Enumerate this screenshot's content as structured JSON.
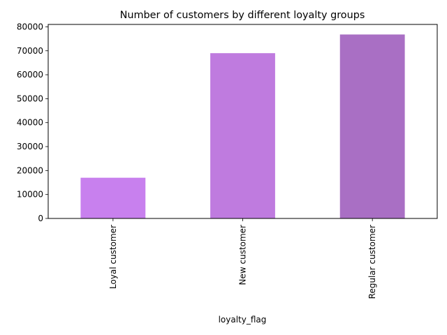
{
  "chart_data": {
    "type": "bar",
    "title": "Number of customers by different loyalty groups",
    "xlabel": "loyalty_flag",
    "ylabel": "",
    "categories": [
      "Loyal customer",
      "New customer",
      "Regular customer"
    ],
    "values": [
      17000,
      69000,
      76800
    ],
    "colors": [
      "#c880ee",
      "#bf7bdf",
      "#a96fc4"
    ],
    "ylim": [
      0,
      81000
    ],
    "yticks": [
      0,
      10000,
      20000,
      30000,
      40000,
      50000,
      60000,
      70000,
      80000
    ],
    "ytick_labels": [
      "0",
      "10000",
      "20000",
      "30000",
      "40000",
      "50000",
      "60000",
      "70000",
      "80000"
    ],
    "grid": false,
    "legend": "none",
    "tick_rotation_x": "vertical"
  }
}
